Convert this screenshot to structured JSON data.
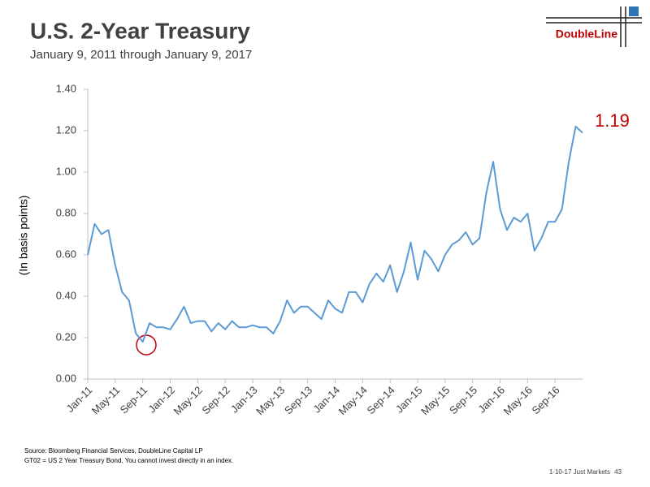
{
  "chart_data": {
    "type": "line",
    "title": "U.S. 2-Year Treasury",
    "subtitle": "January 9, 2011 through January 9, 2017",
    "y_label": "(In basis points)",
    "annotation": "1.19",
    "logo": "DoubleLine",
    "source": "Source: Bloomberg Financial Services, DoubleLine Capital LP",
    "note": "GT02 = US 2 Year Treasury Bond.  You cannot invest directly in an index.",
    "footer": "1-10-17 Just Markets",
    "page": "43",
    "color": "#5b9bd5",
    "categories": [
      "Jan-11",
      null,
      null,
      null,
      "May-11",
      null,
      null,
      null,
      "Sep-11",
      null,
      null,
      null,
      "Jan-12",
      null,
      null,
      null,
      "May-12",
      null,
      null,
      null,
      "Sep-12",
      null,
      null,
      null,
      "Jan-13",
      null,
      null,
      null,
      "May-13",
      null,
      null,
      null,
      "Sep-13",
      null,
      null,
      null,
      "Jan-14",
      null,
      null,
      null,
      "May-14",
      null,
      null,
      null,
      "Sep-14",
      null,
      null,
      null,
      "Jan-15",
      null,
      null,
      null,
      "May-15",
      null,
      null,
      null,
      "Sep-15",
      null,
      null,
      null,
      "Jan-16",
      null,
      null,
      null,
      "May-16",
      null,
      null,
      null,
      "Sep-16",
      null,
      null,
      null,
      null
    ],
    "values": [
      0.6,
      0.75,
      0.7,
      0.72,
      0.55,
      0.42,
      0.38,
      0.22,
      0.18,
      0.27,
      0.25,
      0.25,
      0.24,
      0.29,
      0.35,
      0.27,
      0.28,
      0.28,
      0.23,
      0.27,
      0.24,
      0.28,
      0.25,
      0.25,
      0.26,
      0.25,
      0.25,
      0.22,
      0.28,
      0.38,
      0.32,
      0.35,
      0.35,
      0.32,
      0.29,
      0.38,
      0.34,
      0.32,
      0.42,
      0.42,
      0.37,
      0.46,
      0.51,
      0.47,
      0.55,
      0.42,
      0.52,
      0.66,
      0.48,
      0.62,
      0.58,
      0.52,
      0.6,
      0.65,
      0.67,
      0.71,
      0.65,
      0.68,
      0.9,
      1.05,
      0.82,
      0.72,
      0.78,
      0.76,
      0.8,
      0.62,
      0.68,
      0.76,
      0.76,
      0.82,
      1.05,
      1.22,
      1.19
    ],
    "ylim": [
      0,
      1.4
    ],
    "yticks": [
      {
        "value": 0,
        "label": "0.00"
      },
      {
        "value": 0.2,
        "label": "0.20"
      },
      {
        "value": 0.4,
        "label": "0.40"
      },
      {
        "value": 0.6,
        "label": "0.60"
      },
      {
        "value": 0.8,
        "label": "0.80"
      },
      {
        "value": 1,
        "label": "1.00"
      },
      {
        "value": 1.2,
        "label": "1.20"
      },
      {
        "value": 1.4,
        "label": "1.40"
      }
    ]
  }
}
